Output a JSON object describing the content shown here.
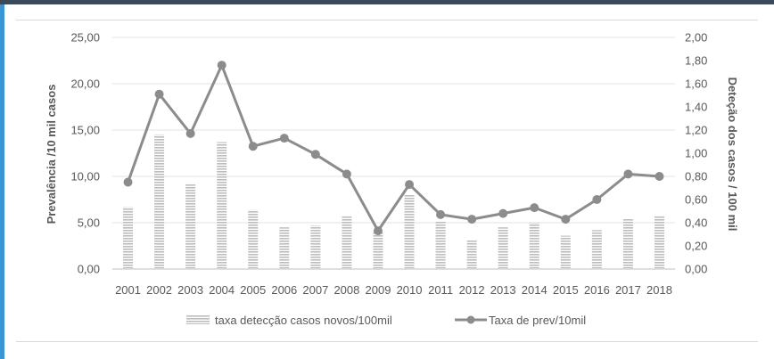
{
  "chart_data": {
    "type": "bar+line",
    "categories": [
      "2001",
      "2002",
      "2003",
      "2004",
      "2005",
      "2006",
      "2007",
      "2008",
      "2009",
      "2010",
      "2011",
      "2012",
      "2013",
      "2014",
      "2015",
      "2016",
      "2017",
      "2018"
    ],
    "series": [
      {
        "name": "taxa detecção casos novos/100mil",
        "type": "bar",
        "axis": "left",
        "values": [
          6.7,
          14.5,
          9.2,
          13.7,
          6.4,
          4.5,
          4.7,
          5.8,
          4.1,
          8.0,
          5.1,
          3.1,
          4.5,
          5.0,
          3.6,
          4.2,
          5.4,
          5.8
        ],
        "color": "#c8c8c8"
      },
      {
        "name": "Taxa de prev/10mil",
        "type": "line",
        "axis": "right",
        "values": [
          0.75,
          1.51,
          1.17,
          1.76,
          1.06,
          1.13,
          0.99,
          0.82,
          0.33,
          0.73,
          0.47,
          0.43,
          0.48,
          0.53,
          0.43,
          0.6,
          0.82,
          0.8
        ],
        "color": "#8c8c8c"
      }
    ],
    "ylabel_left": "Prevalência /10 mil casos",
    "ylabel_right": "Deteção dos casos / 100 mil",
    "ylim_left": [
      0,
      25
    ],
    "ylim_right": [
      0,
      2
    ],
    "yticks_left": [
      "0,00",
      "5,00",
      "10,00",
      "15,00",
      "20,00",
      "25,00"
    ],
    "yticks_right": [
      "0,00",
      "0,20",
      "0,40",
      "0,60",
      "0,80",
      "1,00",
      "1,20",
      "1,40",
      "1,60",
      "1,80",
      "2,00"
    ],
    "grid": true,
    "legend": "bottom"
  }
}
